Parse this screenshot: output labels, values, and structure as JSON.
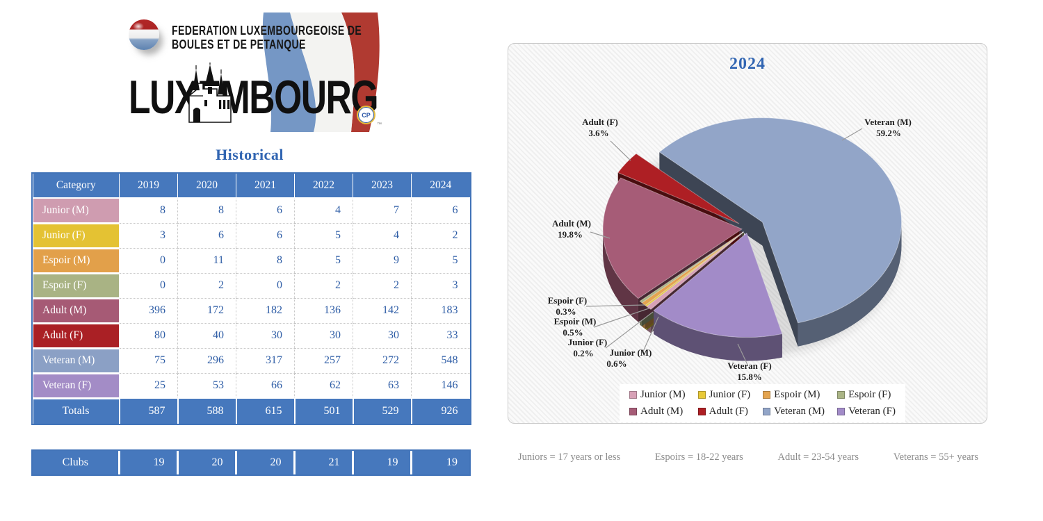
{
  "logo": {
    "federation_line1": "FEDERATION LUXEMBOURGEOISE DE",
    "federation_line2": "BOULES ET DE PETANQUE",
    "country": "LUXEMBOURG",
    "badge_text": "CP",
    "trademark": "™"
  },
  "historical": {
    "title": "Historical",
    "columns": [
      "Category",
      "2019",
      "2020",
      "2021",
      "2022",
      "2023",
      "2024"
    ],
    "rows": [
      {
        "label": "Junior (M)",
        "color": "#cf9cb0",
        "values": [
          8,
          8,
          6,
          4,
          7,
          6
        ]
      },
      {
        "label": "Junior (F)",
        "color": "#e4c233",
        "values": [
          3,
          6,
          6,
          5,
          4,
          2
        ]
      },
      {
        "label": "Espoir (M)",
        "color": "#e2a04a",
        "values": [
          0,
          11,
          8,
          5,
          9,
          5
        ]
      },
      {
        "label": "Espoir (F)",
        "color": "#a9b384",
        "values": [
          0,
          2,
          0,
          2,
          2,
          3
        ]
      },
      {
        "label": "Adult (M)",
        "color": "#a65a75",
        "values": [
          396,
          172,
          182,
          136,
          142,
          183
        ]
      },
      {
        "label": "Adult (F)",
        "color": "#aa2025",
        "values": [
          80,
          40,
          30,
          30,
          30,
          33
        ]
      },
      {
        "label": "Veteran (M)",
        "color": "#8ba0c5",
        "values": [
          75,
          296,
          317,
          257,
          272,
          548
        ]
      },
      {
        "label": "Veteran (F)",
        "color": "#a38cc6",
        "values": [
          25,
          53,
          66,
          62,
          63,
          146
        ]
      }
    ],
    "totals": {
      "label": "Totals",
      "values": [
        587,
        588,
        615,
        501,
        529,
        926
      ]
    },
    "clubs": {
      "label": "Clubs",
      "values": [
        19,
        20,
        20,
        21,
        19,
        19
      ]
    }
  },
  "chart_data": {
    "type": "pie",
    "style": "3d-exploded-pie",
    "title": "2024",
    "categories": [
      "Junior (M)",
      "Junior (F)",
      "Espoir (M)",
      "Espoir (F)",
      "Adult (M)",
      "Adult (F)",
      "Veteran (M)",
      "Veteran (F)"
    ],
    "values": [
      6,
      2,
      5,
      3,
      183,
      33,
      548,
      146
    ],
    "percent_labels": [
      "0.6%",
      "0.2%",
      "0.5%",
      "0.3%",
      "19.8%",
      "3.6%",
      "59.2%",
      "15.8%"
    ],
    "colors": [
      "#d7a1b6",
      "#e8c937",
      "#e4a44f",
      "#aab485",
      "#a65c77",
      "#ae1f24",
      "#92a5c8",
      "#a28bc8"
    ],
    "legend_position": "bottom-center",
    "legend_entries": [
      "Junior (M)",
      "Junior (F)",
      "Espoir (M)",
      "Espoir (F)",
      "Adult (M)",
      "Adult (F)",
      "Veteran (M)",
      "Veteran (F)"
    ]
  },
  "footnotes": [
    "Juniors = 17 years or less",
    "Espoirs = 18-22 years",
    "Adult = 23-54 years",
    "Veterans = 55+ years"
  ],
  "colors": {
    "header_blue": "#4678bd",
    "title_blue": "#3165b2",
    "value_text_blue": "#2e5da6",
    "footnote_gray": "#8c8c8c"
  }
}
